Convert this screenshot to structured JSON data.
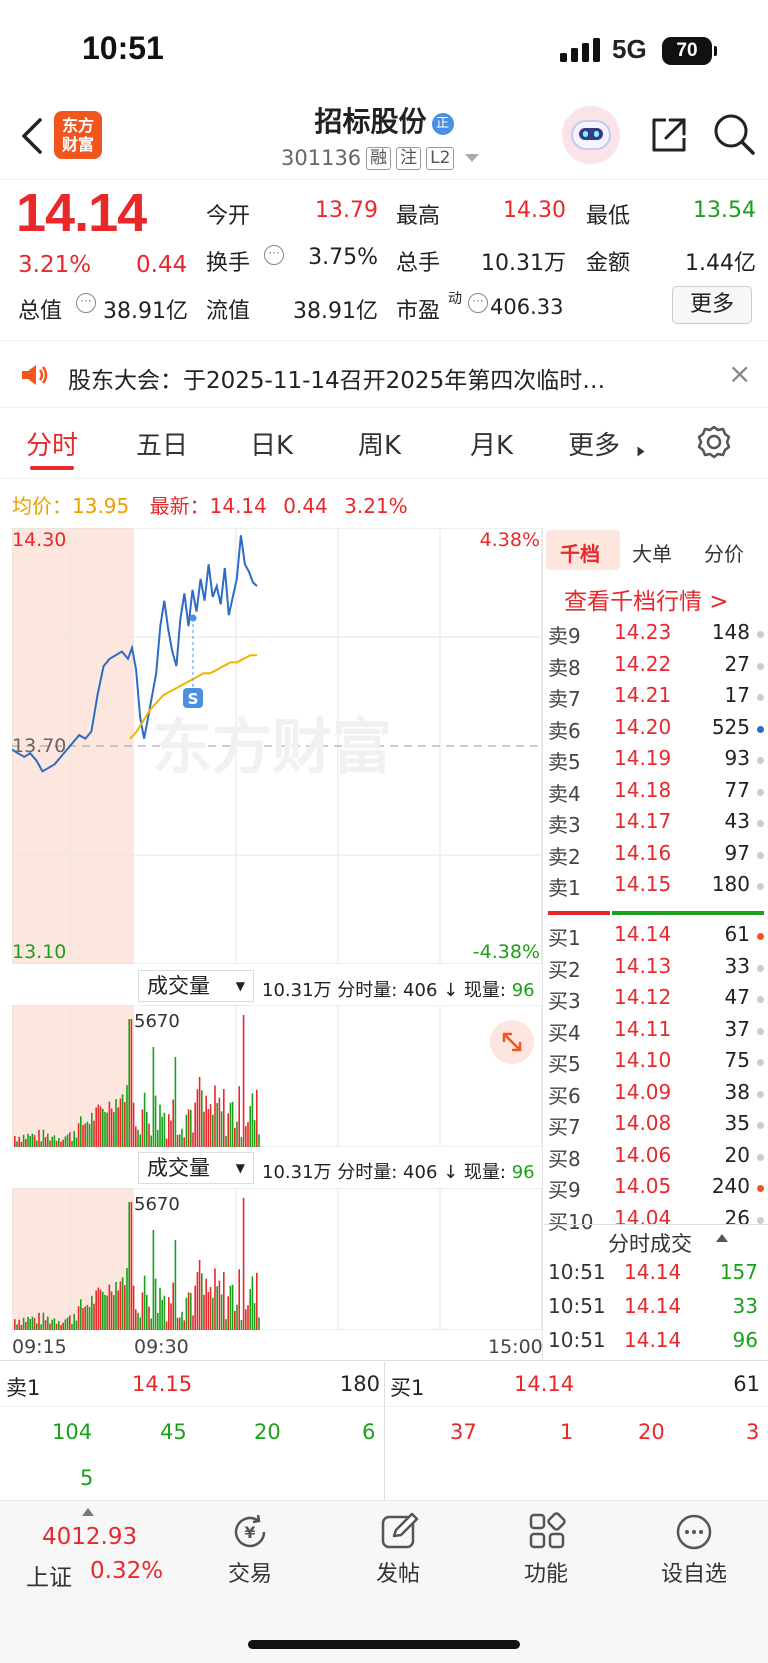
{
  "status": {
    "time": "10:51",
    "network": "5G",
    "battery": "70"
  },
  "header": {
    "name": "招标股份",
    "badge": "正",
    "code": "301136",
    "tags": [
      "融",
      "注",
      "L2"
    ],
    "logo_line1": "东方",
    "logo_line2": "财富"
  },
  "quote": {
    "price": "14.14",
    "change_pct": "3.21%",
    "change": "0.44",
    "stats": [
      {
        "label": "今开",
        "value": "13.79",
        "color": "#e8282b"
      },
      {
        "label": "最高",
        "value": "14.30",
        "color": "#e8282b"
      },
      {
        "label": "最低",
        "value": "13.54",
        "color": "#1aa01a"
      },
      {
        "label": "换手",
        "value": "3.75%",
        "color": "#222"
      },
      {
        "label": "总手",
        "value": "10.31万",
        "color": "#222"
      },
      {
        "label": "金额",
        "value": "1.44亿",
        "color": "#222"
      },
      {
        "label": "总值",
        "value": "38.91亿",
        "color": "#222"
      },
      {
        "label": "流值",
        "value": "38.91亿",
        "color": "#222"
      },
      {
        "label": "市盈",
        "value": "406.33",
        "color": "#222"
      }
    ],
    "pe_sup": "动",
    "more": "更多"
  },
  "notice": {
    "text": "股东大会：于2025-11-14召开2025年第四次临时…"
  },
  "tabs": [
    "分时",
    "五日",
    "日K",
    "周K",
    "月K",
    "更多"
  ],
  "chart_info": {
    "avg_label": "均价：",
    "avg_value": "13.95",
    "latest_label": "最新：",
    "latest_value": "14.14",
    "latest_change": "0.44",
    "latest_pct": "3.21%"
  },
  "chart_data": {
    "type": "line",
    "ylim": [
      13.1,
      14.3
    ],
    "y_tick_labels": [
      "14.30",
      "13.70",
      "13.10"
    ],
    "pct_labels": [
      "4.38%",
      "-4.38%"
    ],
    "x_tick_labels": [
      "09:15",
      "09:30",
      "15:00"
    ],
    "watermark": "东方财富",
    "marker": "S",
    "series": [
      {
        "values": [
          13.69,
          13.68,
          13.67,
          13.68,
          13.66,
          13.63,
          13.64,
          13.65,
          13.67,
          13.69,
          13.71,
          13.73,
          13.72,
          13.74,
          13.84,
          13.92,
          13.94,
          13.95,
          13.96,
          13.94,
          13.97,
          13.91,
          13.78,
          13.72,
          13.78,
          13.84,
          13.9,
          14.03,
          14.1,
          14.02,
          13.96,
          13.92,
          14.05,
          14.12,
          14.03,
          14.13,
          14.07,
          14.16,
          14.1,
          14.2,
          14.11,
          14.14,
          14.09,
          14.19,
          14.06,
          14.11,
          14.16,
          14.28,
          14.2,
          14.18,
          14.15,
          14.14
        ]
      },
      {
        "values": [
          13.72,
          13.74,
          13.77,
          13.8,
          13.82,
          13.84,
          13.85,
          13.86,
          13.87,
          13.88,
          13.89,
          13.9,
          13.9,
          13.91,
          13.92,
          13.93,
          13.93,
          13.94,
          13.95,
          13.95
        ]
      }
    ]
  },
  "volume_panels": [
    {
      "dropdown": "成交量",
      "stats": "10.31万 分时量: 406 ↓ 现量: ",
      "current": "96",
      "peak": "5670"
    },
    {
      "dropdown": "成交量",
      "stats": "10.31万 分时量: 406 ↓ 现量: ",
      "current": "96",
      "peak": "5670"
    }
  ],
  "orderbook": {
    "tabs": [
      "千档",
      "大单",
      "分价"
    ],
    "link": "查看千档行情 >",
    "asks": [
      {
        "label": "卖9",
        "price": "14.23",
        "vol": "148"
      },
      {
        "label": "卖8",
        "price": "14.22",
        "vol": "27"
      },
      {
        "label": "卖7",
        "price": "14.21",
        "vol": "17"
      },
      {
        "label": "卖6",
        "price": "14.20",
        "vol": "525"
      },
      {
        "label": "卖5",
        "price": "14.19",
        "vol": "93"
      },
      {
        "label": "卖4",
        "price": "14.18",
        "vol": "77"
      },
      {
        "label": "卖3",
        "price": "14.17",
        "vol": "43"
      },
      {
        "label": "卖2",
        "price": "14.16",
        "vol": "97"
      },
      {
        "label": "卖1",
        "price": "14.15",
        "vol": "180"
      }
    ],
    "bids": [
      {
        "label": "买1",
        "price": "14.14",
        "vol": "61"
      },
      {
        "label": "买2",
        "price": "14.13",
        "vol": "33"
      },
      {
        "label": "买3",
        "price": "14.12",
        "vol": "47"
      },
      {
        "label": "买4",
        "price": "14.11",
        "vol": "37"
      },
      {
        "label": "买5",
        "price": "14.10",
        "vol": "75"
      },
      {
        "label": "买6",
        "price": "14.09",
        "vol": "38"
      },
      {
        "label": "买7",
        "price": "14.08",
        "vol": "35"
      },
      {
        "label": "买8",
        "price": "14.06",
        "vol": "20"
      },
      {
        "label": "买9",
        "price": "14.05",
        "vol": "240"
      },
      {
        "label": "买10",
        "price": "14.04",
        "vol": "26"
      }
    ],
    "trades_title": "分时成交",
    "trades": [
      {
        "time": "10:51",
        "price": "14.14",
        "vol": "157"
      },
      {
        "time": "10:51",
        "price": "14.14",
        "vol": "33"
      },
      {
        "time": "10:51",
        "price": "14.14",
        "vol": "96"
      }
    ]
  },
  "level": {
    "ask_label": "卖1",
    "ask_price": "14.15",
    "ask_vol": "180",
    "bid_label": "买1",
    "bid_price": "14.14",
    "bid_vol": "61",
    "ask_queue": [
      "104",
      "45",
      "20",
      "6",
      "5"
    ],
    "bid_queue": [
      "37",
      "1",
      "20",
      "3"
    ]
  },
  "bottom": {
    "index_value": "4012.93",
    "index_name": "上证",
    "index_pct": "0.32%",
    "buttons": [
      "交易",
      "发帖",
      "功能",
      "设自选"
    ]
  }
}
